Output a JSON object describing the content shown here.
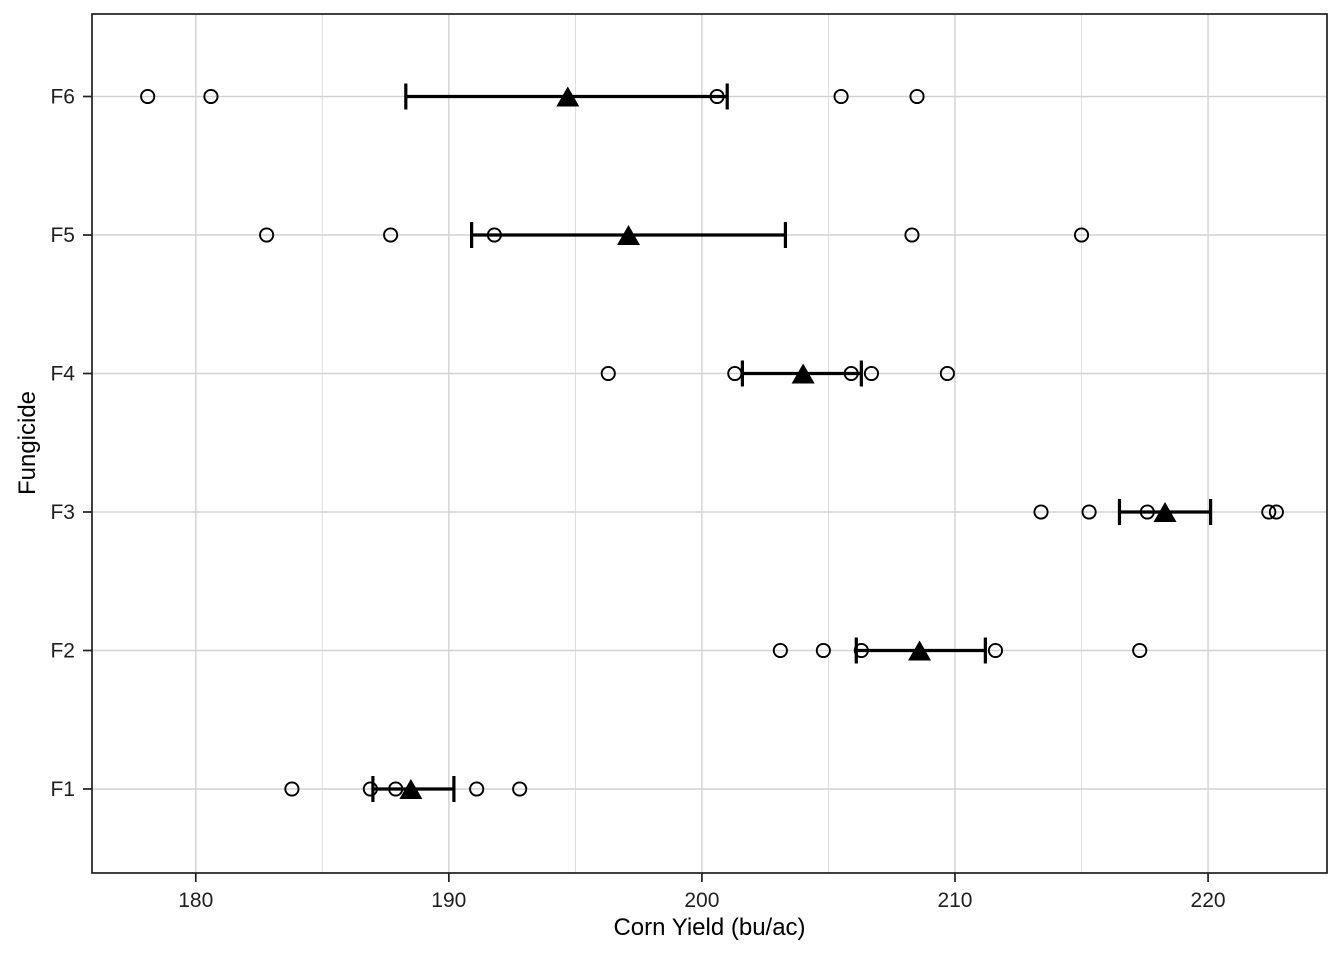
{
  "chart_data": {
    "type": "scatter",
    "title": "",
    "xlabel": "Corn Yield (bu/ac)",
    "ylabel": "Fungicide",
    "categories": [
      "F1",
      "F2",
      "F3",
      "F4",
      "F5",
      "F6"
    ],
    "xlim": [
      175.9,
      224.7
    ],
    "x_ticks": {
      "values": [
        180,
        190,
        200,
        210,
        220
      ],
      "labels": [
        "180",
        "190",
        "200",
        "210",
        "220"
      ]
    },
    "x_minor_gridlines": [
      185,
      195,
      205,
      215
    ],
    "grid": "vertical major+minor, horizontal major per category",
    "legend_position": "none",
    "marks": {
      "observation": "open-circle",
      "mean": "filled-triangle",
      "interval": "error-bar-with-caps"
    },
    "series": [
      {
        "group": "F1",
        "points": [
          183.8,
          186.9,
          187.9,
          191.1,
          192.8
        ],
        "mean": 188.5,
        "ci_low": 187.0,
        "ci_high": 190.2
      },
      {
        "group": "F2",
        "points": [
          203.1,
          204.8,
          206.3,
          211.6,
          217.3
        ],
        "mean": 208.6,
        "ci_low": 206.1,
        "ci_high": 211.2
      },
      {
        "group": "F3",
        "points": [
          213.4,
          215.3,
          217.6,
          222.4,
          222.7
        ],
        "mean": 218.3,
        "ci_low": 216.5,
        "ci_high": 220.1
      },
      {
        "group": "F4",
        "points": [
          196.3,
          201.3,
          205.9,
          206.7,
          209.7
        ],
        "mean": 204.0,
        "ci_low": 201.6,
        "ci_high": 206.3
      },
      {
        "group": "F5",
        "points": [
          182.8,
          187.7,
          191.8,
          208.3,
          215.0
        ],
        "mean": 197.1,
        "ci_low": 190.9,
        "ci_high": 203.3
      },
      {
        "group": "F6",
        "points": [
          178.1,
          180.6,
          200.6,
          205.5,
          208.5
        ],
        "mean": 194.7,
        "ci_low": 188.3,
        "ci_high": 201.0
      }
    ]
  },
  "style": {
    "background_color": "#ffffff",
    "panel_border_color": "#1f1f1f",
    "grid_major_color": "#d2d2d2",
    "grid_minor_color": "#dadada",
    "tick_color": "#1f1f1f",
    "tick_label_color": "#1f1f1f",
    "point_color": "#000000",
    "mean_marker_color": "#000000",
    "errorbar_color": "#000000"
  }
}
